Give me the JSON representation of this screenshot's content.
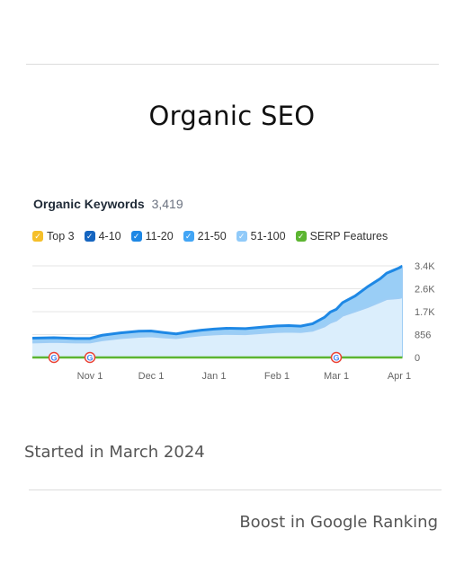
{
  "page": {
    "heading": "Organic SEO",
    "started": "Started in March 2024",
    "boost": "Boost in Google Ranking"
  },
  "chart_data": {
    "type": "area",
    "header": {
      "label": "Organic Keywords",
      "count": "3,419"
    },
    "legend": [
      {
        "name": "Top 3",
        "color": "#f5bf2a"
      },
      {
        "name": "4-10",
        "color": "#1565c0"
      },
      {
        "name": "11-20",
        "color": "#1e88e5"
      },
      {
        "name": "21-50",
        "color": "#42a5f5"
      },
      {
        "name": "51-100",
        "color": "#90caf9"
      },
      {
        "name": "SERP Features",
        "color": "#5cb531"
      }
    ],
    "x_ticks": [
      {
        "label": "Nov 1",
        "x": 1
      },
      {
        "label": "Dec 1",
        "x": 2
      },
      {
        "label": "Jan 1",
        "x": 3
      },
      {
        "label": "Feb 1",
        "x": 4
      },
      {
        "label": "Mar 1",
        "x": 5
      },
      {
        "label": "Apr 1",
        "x": 6
      }
    ],
    "y_ticks": [
      {
        "label": "0",
        "value": 0
      },
      {
        "label": "856",
        "value": 856
      },
      {
        "label": "1.7K",
        "value": 1712
      },
      {
        "label": "2.6K",
        "value": 2568
      },
      {
        "label": "3.4K",
        "value": 3424
      }
    ],
    "ylim": [
      0,
      3424
    ],
    "xlim": [
      0.2,
      6.05
    ],
    "grid": true,
    "series": [
      {
        "name": "Organic Keywords",
        "color": "#1e88e5",
        "x": [
          0.2,
          0.5,
          0.8,
          1.0,
          1.2,
          1.5,
          1.8,
          2.0,
          2.2,
          2.4,
          2.6,
          2.8,
          3.0,
          3.2,
          3.5,
          3.8,
          4.0,
          4.2,
          4.4,
          4.6,
          4.8,
          4.9,
          5.0,
          5.1,
          5.3,
          5.5,
          5.7,
          5.8,
          5.9,
          6.0,
          6.05
        ],
        "y": [
          720,
          740,
          710,
          710,
          830,
          920,
          980,
          990,
          930,
          880,
          960,
          1020,
          1060,
          1090,
          1080,
          1140,
          1180,
          1190,
          1170,
          1260,
          1500,
          1700,
          1800,
          2050,
          2300,
          2650,
          2950,
          3150,
          3250,
          3350,
          3419
        ]
      },
      {
        "name": "51-100",
        "color": "#9ecdf5",
        "x": [
          0.2,
          0.5,
          0.8,
          1.0,
          1.2,
          1.5,
          1.8,
          2.0,
          2.2,
          2.4,
          2.6,
          2.8,
          3.0,
          3.2,
          3.5,
          3.8,
          4.0,
          4.2,
          4.4,
          4.6,
          4.8,
          4.9,
          5.0,
          5.1,
          5.3,
          5.5,
          5.7,
          5.8,
          5.9,
          6.0,
          6.05
        ],
        "y": [
          560,
          580,
          560,
          560,
          640,
          720,
          770,
          790,
          750,
          720,
          780,
          830,
          860,
          880,
          870,
          920,
          950,
          960,
          950,
          1000,
          1160,
          1300,
          1380,
          1560,
          1720,
          1880,
          2080,
          2180,
          2200,
          2220,
          2250
        ]
      },
      {
        "name": "SERP Features",
        "color": "#5cb531",
        "x": [
          0.2,
          6.05
        ],
        "y": [
          0,
          0
        ]
      }
    ],
    "google_markers_x": [
      0.5,
      1.0,
      5.0
    ]
  }
}
